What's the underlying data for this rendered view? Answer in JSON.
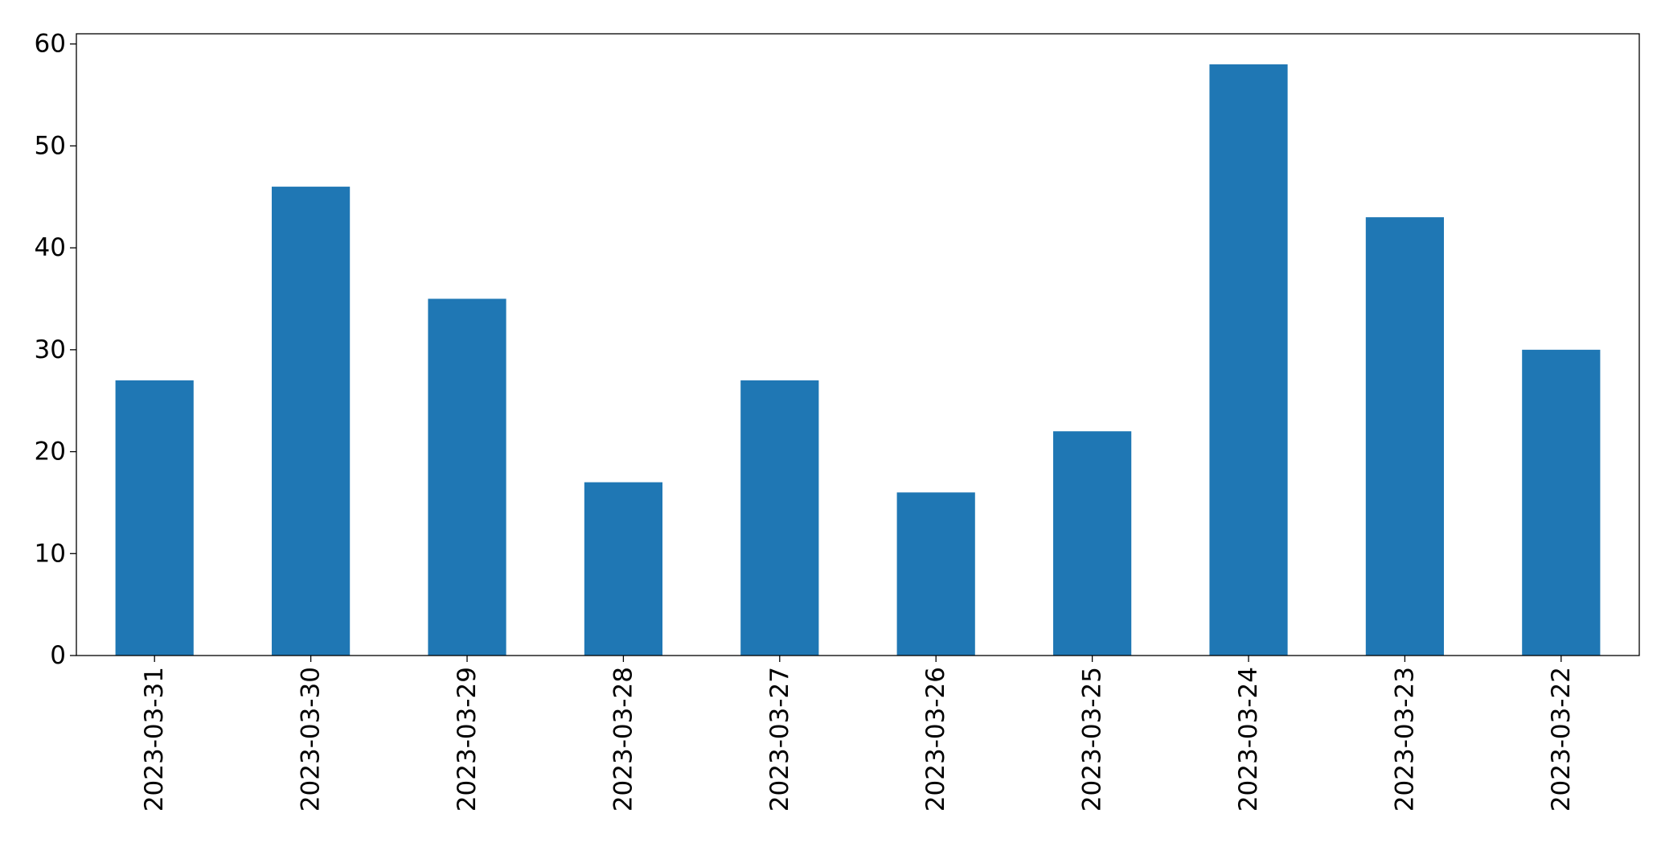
{
  "chart_data": {
    "type": "bar",
    "title": "",
    "xlabel": "",
    "ylabel": "",
    "categories": [
      "2023-03-31",
      "2023-03-30",
      "2023-03-29",
      "2023-03-28",
      "2023-03-27",
      "2023-03-26",
      "2023-03-25",
      "2023-03-24",
      "2023-03-23",
      "2023-03-22"
    ],
    "values": [
      27,
      46,
      35,
      17,
      27,
      16,
      22,
      58,
      43,
      30
    ],
    "ylim": [
      0,
      61
    ],
    "yticks": [
      0,
      10,
      20,
      30,
      40,
      50,
      60
    ],
    "bar_color": "#1f77b4",
    "grid": false,
    "legend": false
  }
}
